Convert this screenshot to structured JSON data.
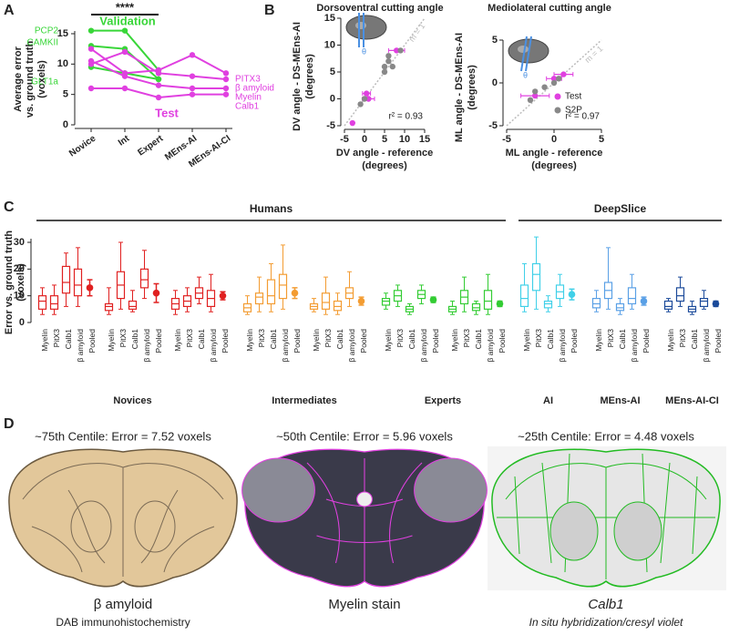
{
  "panel_labels": [
    "A",
    "B",
    "C",
    "D"
  ],
  "chart_data": [
    {
      "type": "line",
      "categories": [
        "Novice",
        "Int",
        "Expert",
        "MEns-AI",
        "MEns-AI-CI"
      ],
      "ylabel": [
        "Average error",
        "vs. ground truth",
        "(voxels)"
      ],
      "ylim": [
        0,
        15
      ],
      "yticks": [
        0,
        5,
        10,
        15
      ],
      "significance": "****",
      "group_labels": [
        {
          "text": "Validation",
          "color": "#39d639"
        },
        {
          "text": "Test",
          "color": "#e040e0"
        }
      ],
      "series": [
        {
          "name": "PCP2",
          "color": "#39d639",
          "values": [
            15.5,
            15.5,
            9,
            null,
            null
          ]
        },
        {
          "name": "CAMKII",
          "color": "#39d639",
          "values": [
            13,
            12.5,
            7.5,
            null,
            null
          ]
        },
        {
          "name": "GLT1a",
          "color": "#39d639",
          "values": [
            9.5,
            8.5,
            7.5,
            null,
            null
          ]
        },
        {
          "name": "PITX3",
          "color": "#e040e0",
          "values": [
            12.5,
            8.5,
            9,
            11.5,
            8.5
          ]
        },
        {
          "name": "β amyloid",
          "color": "#e040e0",
          "values": [
            10,
            12,
            8.5,
            8,
            7.5
          ]
        },
        {
          "name": "Myelin",
          "color": "#e040e0",
          "values": [
            10.5,
            8,
            6.5,
            6,
            6
          ]
        },
        {
          "name": "Calb1",
          "color": "#e040e0",
          "values": [
            6,
            6,
            4.5,
            5,
            5
          ]
        }
      ]
    },
    {
      "type": "scatter",
      "title": "Dorsoventral cutting angle",
      "xlabel": [
        "DV angle - reference",
        "(degrees)"
      ],
      "ylabel": [
        "DV angle - DS-MEns-AI",
        "(degrees)"
      ],
      "xlim": [
        -5,
        15
      ],
      "ylim": [
        -5,
        15
      ],
      "xticks": [
        -5,
        0,
        5,
        10,
        15
      ],
      "yticks": [
        -5,
        0,
        5,
        10,
        15
      ],
      "r2": "r² = 0.93",
      "identity_label": "m = 1",
      "series": [
        {
          "color": "#e040e0",
          "x": [
            8,
            1,
            0.5,
            -3
          ],
          "values": [
            9,
            0,
            1,
            -4.5
          ],
          "xerr": [
            2,
            1.5,
            1,
            0.3
          ]
        },
        {
          "color": "#888888",
          "x": [
            5,
            6,
            5,
            7,
            9,
            -1,
            0,
            6
          ],
          "values": [
            6,
            7,
            5,
            6,
            9,
            -1,
            0,
            8
          ]
        }
      ]
    },
    {
      "type": "scatter",
      "title": "Mediolateral cutting angle",
      "xlabel": [
        "ML angle - reference",
        "(degrees)"
      ],
      "ylabel": [
        "ML angle - DS-MEns-AI",
        "(degrees)"
      ],
      "xlim": [
        -5,
        5
      ],
      "ylim": [
        -5,
        5
      ],
      "xticks": [
        -5,
        0,
        5
      ],
      "yticks": [
        -5,
        0,
        5
      ],
      "r2": "r² = 0.97",
      "identity_label": "m = 1",
      "legend": "right",
      "series": [
        {
          "name": "Test",
          "color": "#e040e0",
          "x": [
            1,
            -2,
            0
          ],
          "values": [
            1,
            -1.5,
            0.5
          ],
          "xerr": [
            1,
            1.5,
            0.8
          ]
        },
        {
          "name": "S2P",
          "color": "#888888",
          "x": [
            -2,
            -1,
            0,
            -2.5,
            0.5
          ],
          "values": [
            -1,
            -0.5,
            0,
            -2,
            0.5
          ]
        }
      ]
    },
    {
      "type": "box",
      "ylabel": [
        "Error vs. ground truth",
        "(voxels)"
      ],
      "ylim": [
        0,
        30
      ],
      "yticks": [
        0,
        10,
        20,
        30
      ],
      "categories": [
        "Myelin",
        "PitX3",
        "Calb1",
        "β amyloid",
        "Pooled"
      ],
      "sections": [
        {
          "name": "Humans",
          "groups": [
            {
              "name": "Novices",
              "color": "#e02020",
              "clusters": [
                {
                  "boxes": [
                    [
                      3,
                      5,
                      8,
                      10,
                      13
                    ],
                    [
                      3,
                      5,
                      7,
                      10,
                      14
                    ],
                    [
                      6,
                      11,
                      15,
                      21,
                      26
                    ],
                    [
                      6,
                      10,
                      14,
                      20,
                      28
                    ]
                  ],
                  "pooled": [
                    13,
                    3
                  ]
                },
                {
                  "boxes": [
                    [
                      3,
                      4.5,
                      6,
                      7,
                      13
                    ],
                    [
                      5,
                      9,
                      14,
                      19,
                      30
                    ],
                    [
                      4,
                      5,
                      6,
                      8,
                      12
                    ],
                    [
                      9,
                      13,
                      16,
                      20,
                      27
                    ]
                  ],
                  "pooled": [
                    11,
                    3.5
                  ]
                },
                {
                  "boxes": [
                    [
                      3,
                      5,
                      7,
                      9,
                      12
                    ],
                    [
                      4,
                      6,
                      8,
                      10,
                      13
                    ],
                    [
                      7,
                      9,
                      11,
                      13,
                      17
                    ],
                    [
                      4,
                      6,
                      9,
                      12,
                      18
                    ]
                  ],
                  "pooled": [
                    10,
                    1.5
                  ]
                }
              ]
            },
            {
              "name": "Intermediates",
              "color": "#f39c32",
              "clusters": [
                {
                  "boxes": [
                    [
                      3,
                      4,
                      5.5,
                      7,
                      10
                    ],
                    [
                      4,
                      7,
                      9.5,
                      11,
                      17
                    ],
                    [
                      4,
                      7,
                      10,
                      16,
                      22
                    ],
                    [
                      5,
                      9,
                      14,
                      18,
                      29
                    ]
                  ],
                  "pooled": [
                    11,
                    2
                  ]
                },
                {
                  "boxes": [
                    [
                      4,
                      5,
                      6,
                      7,
                      9
                    ],
                    [
                      3,
                      5,
                      7.5,
                      11,
                      17
                    ],
                    [
                      3,
                      4.5,
                      6,
                      8,
                      11
                    ],
                    [
                      6,
                      9,
                      11,
                      13,
                      19
                    ]
                  ],
                  "pooled": [
                    8,
                    1.5
                  ]
                }
              ]
            },
            {
              "name": "Experts",
              "color": "#33cc33",
              "clusters": [
                {
                  "boxes": [
                    [
                      5,
                      6.5,
                      8,
                      9,
                      11
                    ],
                    [
                      6,
                      8,
                      10,
                      12,
                      14
                    ],
                    [
                      3,
                      4,
                      5,
                      6,
                      7
                    ],
                    [
                      7,
                      9,
                      10.5,
                      12,
                      14
                    ]
                  ],
                  "pooled": [
                    8.5,
                    1
                  ]
                },
                {
                  "boxes": [
                    [
                      3,
                      4,
                      5,
                      6,
                      8
                    ],
                    [
                      4,
                      7,
                      9.5,
                      12,
                      17
                    ],
                    [
                      3,
                      4.5,
                      5.5,
                      7,
                      8
                    ],
                    [
                      3,
                      5,
                      8,
                      12,
                      18
                    ]
                  ],
                  "pooled": [
                    7,
                    1
                  ]
                }
              ]
            }
          ]
        },
        {
          "name": "DeepSlice",
          "groups": [
            {
              "name": "AI",
              "color": "#40d0e8",
              "clusters": [
                {
                  "boxes": [
                    [
                      4,
                      6,
                      9,
                      14,
                      22
                    ],
                    [
                      5,
                      12,
                      18,
                      22,
                      32
                    ],
                    [
                      4,
                      5.5,
                      7,
                      8,
                      10
                    ],
                    [
                      6,
                      9,
                      11.5,
                      14,
                      18
                    ]
                  ],
                  "pooled": [
                    10.5,
                    2
                  ]
                }
              ]
            },
            {
              "name": "MEns-AI",
              "color": "#5aa0e6",
              "clusters": [
                {
                  "boxes": [
                    [
                      4,
                      5.5,
                      7,
                      9,
                      12
                    ],
                    [
                      5,
                      9,
                      12,
                      15,
                      28
                    ],
                    [
                      3,
                      4.5,
                      5.5,
                      7,
                      9
                    ],
                    [
                      5,
                      7,
                      9,
                      13,
                      18
                    ]
                  ],
                  "pooled": [
                    8,
                    1.5
                  ]
                }
              ]
            },
            {
              "name": "MEns-AI-CI",
              "color": "#1b4a9a",
              "clusters": [
                {
                  "boxes": [
                    [
                      4,
                      5,
                      6,
                      8,
                      9
                    ],
                    [
                      6,
                      8,
                      10,
                      13,
                      17
                    ],
                    [
                      3,
                      4,
                      5,
                      6,
                      8
                    ],
                    [
                      5,
                      6,
                      8,
                      9,
                      12
                    ]
                  ],
                  "pooled": [
                    7,
                    1
                  ]
                }
              ]
            }
          ]
        }
      ]
    }
  ],
  "images": [
    {
      "title": "~75th Centile: Error = 7.52 voxels",
      "caption": "β amyloid",
      "subcaption": "DAB immunohistochemistry"
    },
    {
      "title": "~50th Centile: Error = 5.96 voxels",
      "caption": "Myelin stain"
    },
    {
      "title": "~25th Centile: Error = 4.48 voxels",
      "caption": "Calb1",
      "subcaption": "In situ hybridization/cresyl violet"
    }
  ]
}
